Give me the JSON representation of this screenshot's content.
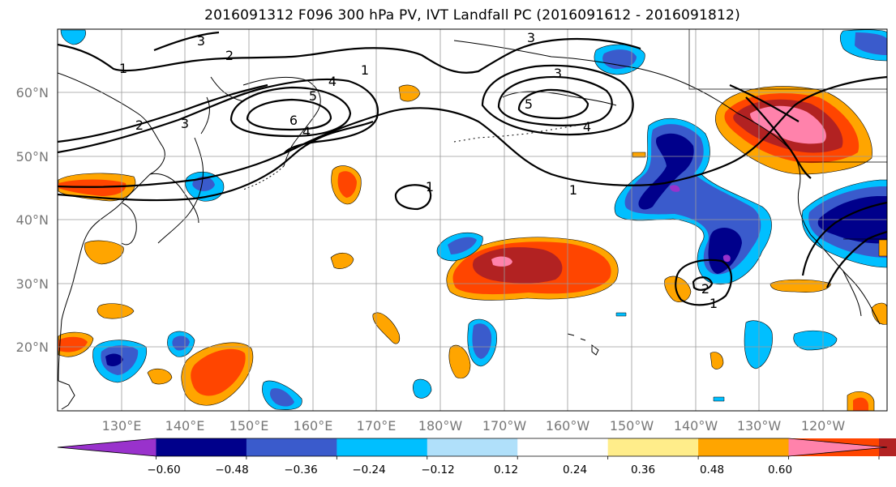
{
  "title": "2016091312 F096 300 hPa PV, IVT Landfall PC (2016091612 - 2016091812)",
  "map": {
    "lat_labels": [
      "60°N",
      "50°N",
      "40°N",
      "30°N",
      "20°N"
    ],
    "lon_labels": [
      "130°E",
      "140°E",
      "150°E",
      "160°E",
      "170°E",
      "180°W",
      "170°W",
      "160°W",
      "150°W",
      "140°W",
      "130°W",
      "120°W"
    ],
    "contour_labels": [
      "1",
      "2",
      "3",
      "3",
      "4",
      "5",
      "6",
      "4",
      "4",
      "3",
      "5",
      "1",
      "1",
      "1",
      "2",
      "1",
      "2",
      "3"
    ]
  },
  "colorbar": {
    "ticks": [
      "−0.60",
      "−0.48",
      "−0.36",
      "−0.24",
      "−0.12",
      "0.12",
      "0.24",
      "0.36",
      "0.48",
      "0.60"
    ],
    "colors": [
      "#9932cc",
      "#00008b",
      "#3a5bcc",
      "#00bfff",
      "#b0e0fa",
      "#ffffff",
      "#ffed8a",
      "#ffa500",
      "#ff4500",
      "#b22222",
      "#ff82ab"
    ]
  }
}
